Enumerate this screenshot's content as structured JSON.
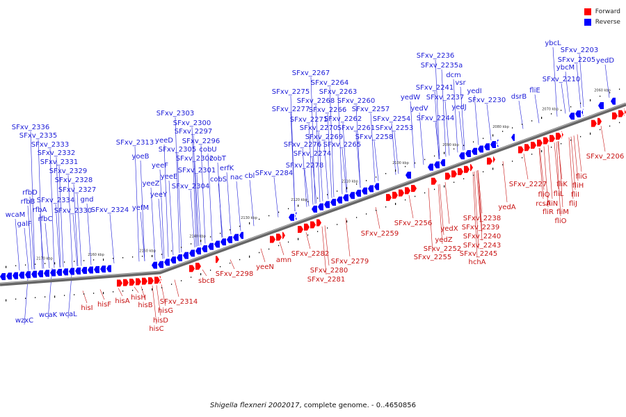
{
  "legend": {
    "forward": {
      "label": "Forward",
      "color": "#ff0000"
    },
    "reverse": {
      "label": "Reverse",
      "color": "#0000ff"
    }
  },
  "caption": {
    "organism": "Shigella flexneri 2002017",
    "rest": ", complete genome. - 0..4650856"
  },
  "colors": {
    "backbone": "#666666",
    "backbone_highlight": "#bbbbbb",
    "tick": "#000000",
    "forward": "#ff0000",
    "reverse": "#0000ff"
  },
  "ticks": [
    "2060 kbp",
    "2070 kbp",
    "2080 kbp",
    "2090 kbp",
    "2100 kbp",
    "2110 kbp",
    "2120 kbp",
    "2130 kbp",
    "2140 kbp",
    "2150 kbp",
    "2160 kbp",
    "2170 kbp"
  ],
  "reverse_labels": [
    "ybcL",
    "SFxv_2203",
    "ybcM",
    "SFxv_2205",
    "yedD",
    "SFxv_2210",
    "fliE",
    "dsrB",
    "SFxv_2236",
    "SFxv_2235a",
    "dcm",
    "vsr",
    "SFxv_2241",
    "yedI",
    "SFxv_2237",
    "yedJ",
    "SFxv_2230",
    "yedW",
    "yedV",
    "SFxv_2244",
    "SFxv_2257",
    "SFxv_2254",
    "SFxv_2253",
    "SFxv_2258",
    "SFxv_2267",
    "SFxv_2264",
    "SFxv_2275",
    "SFxv_2263",
    "SFxv_2268",
    "SFxv_2260",
    "SFxv_2277",
    "SFxv_2266",
    "SFxv_2262",
    "SFxv_2271",
    "SFxv_2261",
    "SFxv_2270",
    "SFxv_2269",
    "SFxv_2276",
    "SFxv_2265",
    "SFxv_2274",
    "SFxv_2278",
    "SFxv_2284",
    "SFxv_2303",
    "SFxv_2300",
    "SFxv_2297",
    "yeeD",
    "SFxv_2296",
    "SFxv_2305",
    "cobU",
    "SFxv_2302",
    "cobT",
    "SFxv_2301",
    "erfK",
    "cobS",
    "nac",
    "cbl",
    "SFxv_2304",
    "yeeE",
    "yeeF",
    "yeeY",
    "yeeZ",
    "yoeB",
    "SFxv_2313",
    "yefM",
    "SFxv_2324",
    "SFxv_2336",
    "SFxv_2335",
    "SFxv_2333",
    "SFxv_2332",
    "SFxv_2331",
    "SFxv_2329",
    "rfbD",
    "SFxv_2328",
    "SFxv_2327",
    "rfbB",
    "gnd",
    "SFxv_2334",
    "rfbA",
    "wcaM",
    "SFxv_2330",
    "rfbC",
    "galF",
    "wzxC",
    "wcaK",
    "wcaL"
  ],
  "forward_labels": [
    "SFxv_2206",
    "fliG",
    "fliH",
    "fliK",
    "fliI",
    "fliL",
    "fliJ",
    "fliQ",
    "fliM",
    "fliN",
    "SFxv_2227",
    "rcsA",
    "fliR",
    "fliO",
    "yedA",
    "SFxv_2238",
    "SFxv_2239",
    "SFxv_2240",
    "SFxv_2243",
    "SFxv_2245",
    "hchA",
    "yedX",
    "yedZ",
    "SFxv_2252",
    "SFxv_2256",
    "SFxv_2255",
    "SFxv_2259",
    "SFxv_2279",
    "SFxv_2282",
    "SFxv_2280",
    "SFxv_2281",
    "amn",
    "yeeN",
    "SFxv_2298",
    "sbcB",
    "SFxv_2314",
    "hisI",
    "hisF",
    "hisA",
    "hisH",
    "hisB",
    "hisG",
    "hisD",
    "hisC"
  ]
}
